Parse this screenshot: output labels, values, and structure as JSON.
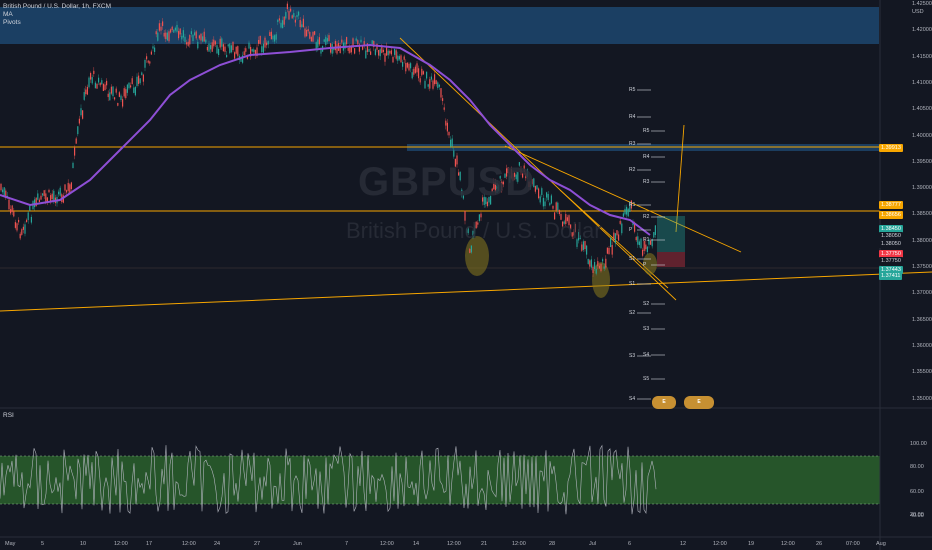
{
  "legend": {
    "title": "British Pound / U.S. Dollar, 1h, FXCM",
    "ma": "MA",
    "pivots": "Pivots"
  },
  "watermark": {
    "symbol": "GBPUSD",
    "name": "British Pound / U.S. Dollar"
  },
  "rsi_label": "RSI",
  "currency": "USD",
  "price_ticks": [
    "1.42500",
    "1.42000",
    "1.41500",
    "1.41000",
    "1.40500",
    "1.40000",
    "1.39500",
    "1.39000",
    "1.38500",
    "1.38000",
    "1.37500",
    "1.37000",
    "1.36500",
    "1.36000",
    "1.35500",
    "1.35000"
  ],
  "price_tags": [
    {
      "text": "1.39913",
      "color": "#f7a600"
    },
    {
      "text": "1.38777",
      "color": "#f7a600"
    },
    {
      "text": "1.38656",
      "color": "#f7a600"
    },
    {
      "text": "1.38450",
      "color": "#26a69a"
    },
    {
      "text": "1.38050",
      "color": "#131722"
    },
    {
      "text": "1.38050",
      "color": "#131722"
    },
    {
      "text": "1.37750",
      "color": "#f23645"
    },
    {
      "text": "1.37750",
      "color": "#131722"
    },
    {
      "text": "1.37443",
      "color": "#26a69a"
    },
    {
      "text": "1.37411",
      "color": "#26a69a"
    }
  ],
  "time_ticks": [
    "May",
    "5",
    "10",
    "12:00",
    "17",
    "12:00",
    "24",
    "27",
    "Jun",
    "7",
    "12:00",
    "14",
    "12:00",
    "21",
    "12:00",
    "28",
    "Jul",
    "6",
    "12",
    "12:00",
    "19",
    "12:00",
    "26",
    "07:00",
    "Aug"
  ],
  "pivot_labels": [
    "R5",
    "R4",
    "R5",
    "R3",
    "R4",
    "R2",
    "R3",
    "R1",
    "R2",
    "P",
    "R1",
    "S1",
    "P",
    "S1",
    "S2",
    "S2",
    "S3",
    "S3",
    "S4",
    "S5",
    "S4"
  ],
  "rsi_ticks": [
    "100.00",
    "80.00",
    "60.00",
    "40.00",
    "20.00"
  ],
  "badges": [
    "E",
    "E"
  ],
  "colors": {
    "background": "#131722",
    "ma": "#8e4fd6",
    "trend": "#f7a600",
    "zone": "#1f4e79",
    "rsi_band": "#2e6b2e"
  }
}
